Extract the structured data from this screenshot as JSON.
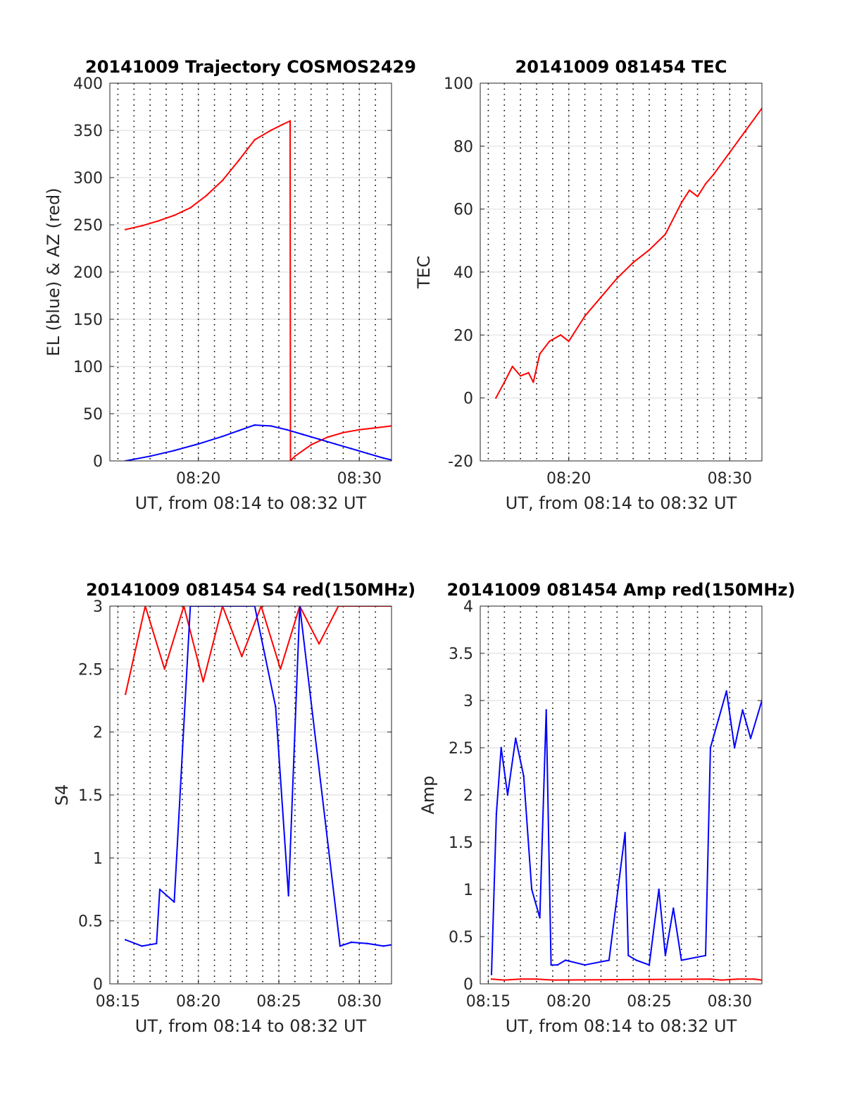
{
  "chart_data": [
    {
      "type": "line",
      "title": "20141009 Trajectory COSMOS2429",
      "xlabel": "UT, from 08:14 to 08:32 UT",
      "ylabel": "EL (blue) & AZ (red)",
      "xlim": [
        14.5,
        32
      ],
      "ylim": [
        0,
        400
      ],
      "yticks": [
        0,
        50,
        100,
        150,
        200,
        250,
        300,
        350,
        400
      ],
      "xticks": [
        {
          "value": 20,
          "label": "08:20"
        },
        {
          "value": 30,
          "label": "08:30"
        }
      ],
      "grid": "on (solid y grid, dotted vertical minute lines)",
      "series": [
        {
          "color": "#ff0000",
          "x": [
            15.47,
            16.5,
            17.5,
            18.5,
            19.5,
            20.5,
            21.5,
            22.5,
            23.5,
            24.5,
            25.2,
            25.7,
            25.72,
            26.0,
            27.0,
            28.0,
            29.0,
            30.0,
            31.0,
            32.0
          ],
          "y": [
            245,
            249,
            254,
            260,
            268,
            281,
            297,
            318,
            340,
            350,
            356,
            360,
            0,
            5,
            17,
            25,
            30,
            33,
            35,
            37
          ]
        },
        {
          "color": "#0000ff",
          "x": [
            15.47,
            17.0,
            18.5,
            20.0,
            21.5,
            22.5,
            23.5,
            24.5,
            25.5,
            26.5,
            27.5,
            28.5,
            29.5,
            30.5,
            31.5,
            32.0
          ],
          "y": [
            0,
            5,
            11,
            18,
            26,
            32,
            38,
            37,
            33,
            28,
            23,
            18,
            13,
            8,
            3,
            1
          ]
        }
      ]
    },
    {
      "type": "line",
      "title": "20141009 081454 TEC",
      "xlabel": "UT, from 08:14 to 08:32 UT",
      "ylabel": "TEC",
      "xlim": [
        14.5,
        32
      ],
      "ylim": [
        -20,
        100
      ],
      "yticks": [
        -20,
        0,
        20,
        40,
        60,
        80,
        100
      ],
      "xticks": [
        {
          "value": 20,
          "label": "08:20"
        },
        {
          "value": 30,
          "label": "08:30"
        }
      ],
      "grid": "on",
      "series": [
        {
          "color": "#ff0000",
          "x": [
            15.47,
            16.0,
            16.5,
            17.0,
            17.5,
            17.8,
            18.2,
            18.8,
            19.5,
            20.0,
            21.0,
            22.0,
            23.0,
            24.0,
            25.0,
            26.0,
            27.0,
            27.5,
            28.0,
            28.5,
            29.0,
            30.0,
            31.0,
            32.0
          ],
          "y": [
            0,
            5,
            10,
            7,
            8,
            5,
            14,
            18,
            20,
            18,
            26,
            32,
            38,
            43,
            47,
            52,
            62,
            66,
            64,
            68,
            71,
            78,
            85,
            92
          ]
        }
      ]
    },
    {
      "type": "line",
      "title": "20141009 081454 S4 red(150MHz)",
      "xlabel": "UT, from 08:14 to 08:32 UT",
      "ylabel": "S4",
      "xlim": [
        14.5,
        32
      ],
      "ylim": [
        0,
        3
      ],
      "yticks": [
        0,
        0.5,
        1,
        1.5,
        2,
        2.5,
        3
      ],
      "xticks": [
        {
          "value": 15,
          "label": "08:15"
        },
        {
          "value": 20,
          "label": "08:20"
        },
        {
          "value": 25,
          "label": "08:25"
        },
        {
          "value": 30,
          "label": "08:30"
        }
      ],
      "grid": "on",
      "series": [
        {
          "color": "#ff0000",
          "x": [
            15.47,
            16.7,
            17.9,
            19.1,
            20.3,
            21.5,
            22.7,
            23.9,
            25.1,
            26.3,
            27.5,
            28.7,
            29.9,
            31.1,
            32.0
          ],
          "y": [
            2.3,
            3.0,
            2.5,
            3.0,
            2.4,
            3.0,
            2.6,
            3.0,
            2.5,
            3.0,
            2.7,
            3.0,
            3.0,
            3.0,
            3.0
          ]
        },
        {
          "color": "#0000ff",
          "x": [
            15.47,
            16.5,
            17.4,
            17.6,
            18.5,
            19.5,
            20.5,
            22.0,
            23.5,
            24.8,
            25.6,
            26.3,
            28.8,
            29.5,
            30.5,
            31.5,
            32.0
          ],
          "y": [
            0.35,
            0.3,
            0.32,
            0.75,
            0.65,
            3.0,
            3.0,
            3.0,
            3.0,
            2.2,
            0.7,
            3.0,
            0.3,
            0.33,
            0.32,
            0.3,
            0.31
          ]
        }
      ]
    },
    {
      "type": "line",
      "title": "20141009 081454 Amp red(150MHz)",
      "xlabel": "UT, from 08:14 to 08:32 UT",
      "ylabel": "Amp",
      "xlim": [
        14.5,
        32
      ],
      "ylim": [
        0,
        4
      ],
      "yticks": [
        0,
        0.5,
        1,
        1.5,
        2,
        2.5,
        3,
        3.5,
        4
      ],
      "xticks": [
        {
          "value": 15,
          "label": "08:15"
        },
        {
          "value": 20,
          "label": "08:20"
        },
        {
          "value": 25,
          "label": "08:25"
        },
        {
          "value": 30,
          "label": "08:30"
        }
      ],
      "grid": "on",
      "series": [
        {
          "color": "#0000ff",
          "x": [
            15.2,
            15.5,
            15.8,
            16.2,
            16.7,
            17.2,
            17.7,
            18.2,
            18.6,
            18.9,
            19.3,
            19.8,
            21.0,
            22.5,
            23.5,
            23.7,
            24.2,
            25.0,
            25.6,
            26.0,
            26.5,
            27.0,
            28.5,
            28.8,
            29.3,
            29.8,
            30.3,
            30.8,
            31.3,
            32.0
          ],
          "y": [
            0.1,
            1.8,
            2.5,
            2.0,
            2.6,
            2.2,
            1.0,
            0.7,
            2.9,
            0.2,
            0.2,
            0.25,
            0.2,
            0.25,
            1.6,
            0.3,
            0.25,
            0.2,
            1.0,
            0.3,
            0.8,
            0.25,
            0.3,
            2.5,
            2.8,
            3.1,
            2.5,
            2.9,
            2.6,
            3.0
          ]
        },
        {
          "color": "#ff0000",
          "x": [
            15.2,
            16.0,
            17.0,
            18.0,
            19.0,
            28.8,
            29.5,
            30.5,
            31.5,
            32.0
          ],
          "y": [
            0.05,
            0.04,
            0.05,
            0.05,
            0.04,
            0.05,
            0.04,
            0.05,
            0.05,
            0.04
          ]
        }
      ]
    }
  ]
}
